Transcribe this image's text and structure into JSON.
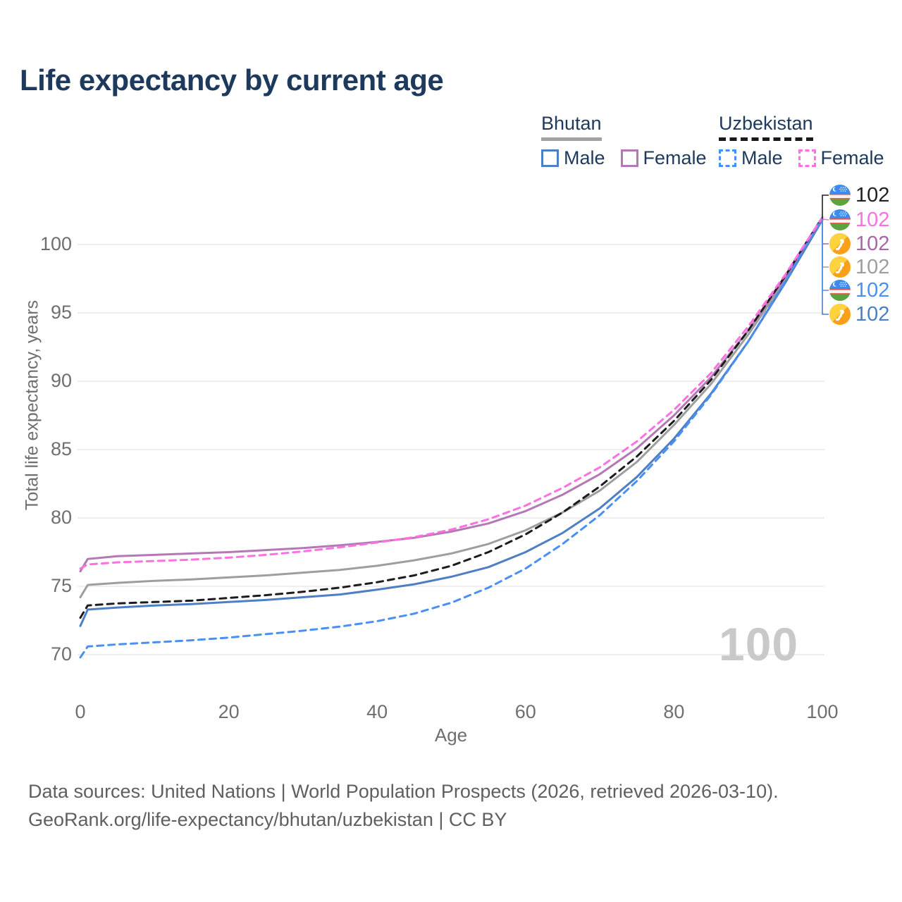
{
  "title": "Life expectancy by current age",
  "legend": {
    "bhutan": {
      "label": "Bhutan",
      "male": "Male",
      "female": "Female",
      "male_color": "#4e7fc4",
      "female_color": "#b478b4",
      "line_color": "#a3a3a3"
    },
    "uzbekistan": {
      "label": "Uzbekistan",
      "male": "Male",
      "female": "Female",
      "male_color": "#4a90f4",
      "female_color": "#ff70e0",
      "line_color": "#1a1a1a"
    }
  },
  "axes": {
    "x_label": "Age",
    "y_label": "Total life expectancy, years",
    "x_ticks": [
      0,
      20,
      40,
      60,
      80,
      100
    ],
    "y_ticks": [
      70,
      75,
      80,
      85,
      90,
      95,
      100
    ]
  },
  "watermark": "100",
  "right_labels": [
    {
      "flag": "uz",
      "country": "Uzbekistan",
      "series": "Uzbekistan",
      "value": "102",
      "color": "#212121",
      "y": 277
    },
    {
      "flag": "uz",
      "country": "Uzbekistan",
      "series": "Uzbekistan Female",
      "value": "102",
      "color": "#ff70e0",
      "y": 312
    },
    {
      "flag": "bt",
      "country": "Bhutan",
      "series": "Bhutan Female",
      "value": "102",
      "color": "#a867a5",
      "y": 346
    },
    {
      "flag": "bt",
      "country": "Bhutan",
      "series": "Bhutan",
      "value": "102",
      "color": "#9e9e9e",
      "y": 379
    },
    {
      "flag": "uz",
      "country": "Uzbekistan",
      "series": "Uzbekistan Male",
      "value": "102",
      "color": "#4a90f4",
      "y": 412
    },
    {
      "flag": "bt",
      "country": "Bhutan",
      "series": "Bhutan Male",
      "value": "102",
      "color": "#4e7fc4",
      "y": 446
    }
  ],
  "footer": {
    "line1": "Data sources: United Nations | World Population Prospects (2026, retrieved 2026-03-10).",
    "line2": "GeoRank.org/life-expectancy/bhutan/uzbekistan | CC BY"
  },
  "chart_data": {
    "type": "line",
    "title": "Life expectancy by current age",
    "xlabel": "Age",
    "ylabel": "Total life expectancy, years",
    "xlim": [
      0,
      100
    ],
    "ylim": [
      68.5,
      102.5
    ],
    "grid": "horizontal",
    "legend_position": "top-right",
    "x": [
      0,
      1,
      5,
      10,
      15,
      20,
      25,
      30,
      35,
      40,
      45,
      50,
      55,
      60,
      65,
      70,
      75,
      80,
      85,
      90,
      95,
      100
    ],
    "series": [
      {
        "name": "Bhutan",
        "color": "#9e9e9e",
        "dash": false,
        "values": [
          74.2,
          75.1,
          75.25,
          75.4,
          75.5,
          75.65,
          75.8,
          76.0,
          76.2,
          76.5,
          76.9,
          77.4,
          78.1,
          79.1,
          80.4,
          82.0,
          84.1,
          86.8,
          89.8,
          93.4,
          97.4,
          101.9
        ]
      },
      {
        "name": "Bhutan Male",
        "color": "#4e7fc4",
        "dash": false,
        "values": [
          72.1,
          73.3,
          73.45,
          73.6,
          73.7,
          73.85,
          74.0,
          74.2,
          74.4,
          74.75,
          75.15,
          75.7,
          76.4,
          77.5,
          78.9,
          80.7,
          83.0,
          85.8,
          89.1,
          92.9,
          97.2,
          101.8
        ]
      },
      {
        "name": "Bhutan Female",
        "color": "#b478b4",
        "dash": false,
        "values": [
          76.1,
          77.0,
          77.2,
          77.3,
          77.4,
          77.5,
          77.65,
          77.8,
          78.0,
          78.25,
          78.55,
          79.0,
          79.6,
          80.5,
          81.7,
          83.2,
          85.1,
          87.5,
          90.3,
          93.7,
          97.6,
          101.9
        ]
      },
      {
        "name": "Uzbekistan",
        "color": "#1c1c1c",
        "dash": true,
        "values": [
          72.7,
          73.6,
          73.75,
          73.85,
          73.95,
          74.15,
          74.35,
          74.6,
          74.9,
          75.3,
          75.8,
          76.5,
          77.5,
          78.8,
          80.4,
          82.3,
          84.5,
          87.1,
          90.1,
          93.7,
          97.7,
          102.0
        ]
      },
      {
        "name": "Uzbekistan Male",
        "color": "#4a90f4",
        "dash": true,
        "values": [
          69.8,
          70.6,
          70.75,
          70.9,
          71.05,
          71.25,
          71.5,
          71.75,
          72.05,
          72.45,
          73.0,
          73.8,
          74.9,
          76.3,
          78.1,
          80.2,
          82.7,
          85.6,
          89.0,
          92.9,
          97.3,
          102.0
        ]
      },
      {
        "name": "Uzbekistan Female",
        "color": "#ff70e0",
        "dash": true,
        "values": [
          76.3,
          76.6,
          76.75,
          76.85,
          76.95,
          77.1,
          77.3,
          77.55,
          77.85,
          78.2,
          78.6,
          79.15,
          79.9,
          80.9,
          82.2,
          83.7,
          85.6,
          87.9,
          90.6,
          94.0,
          97.8,
          102.0
        ]
      }
    ]
  }
}
